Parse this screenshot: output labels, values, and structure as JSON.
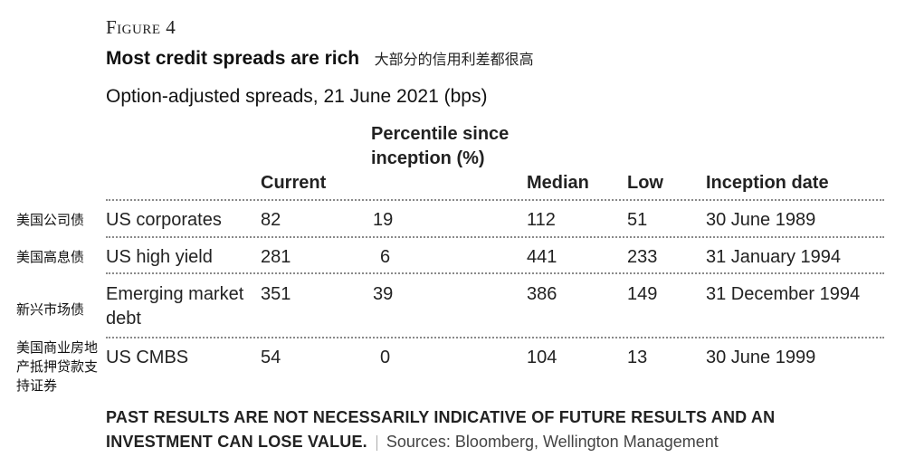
{
  "figure_label": "Figure 4",
  "title": "Most credit spreads are rich",
  "title_cn": "大部分的信用利差都很高",
  "subtitle": "Option-adjusted spreads, 21 June 2021 (bps)",
  "chart_data": {
    "type": "table",
    "columns": [
      "",
      "Current",
      "Percentile since inception (%)",
      "Median",
      "Low",
      "Inception date"
    ],
    "rows": [
      {
        "name_cn": "美国公司债",
        "name": "US corporates",
        "current": "82",
        "percentile": "19",
        "median": "112",
        "low": "51",
        "inception": "30 June 1989"
      },
      {
        "name_cn": "美国高息债",
        "name": "US high yield",
        "current": "281",
        "percentile": "6",
        "median": "441",
        "low": "233",
        "inception": "31 January 1994"
      },
      {
        "name_cn": "新兴市场债",
        "name": "Emerging market debt",
        "current": "351",
        "percentile": "39",
        "median": "386",
        "low": "149",
        "inception": "31 December 1994"
      },
      {
        "name_cn": "美国商业房地产抵押贷款支持证券",
        "name": "US CMBS",
        "current": "54",
        "percentile": "0",
        "median": "104",
        "low": "13",
        "inception": "30 June 1999"
      }
    ]
  },
  "footer": {
    "disclaimer": "PAST RESULTS ARE NOT NECESSARILY INDICATIVE OF FUTURE RESULTS AND AN INVESTMENT CAN LOSE VALUE.",
    "sources": "Sources: Bloomberg, Wellington Management"
  }
}
